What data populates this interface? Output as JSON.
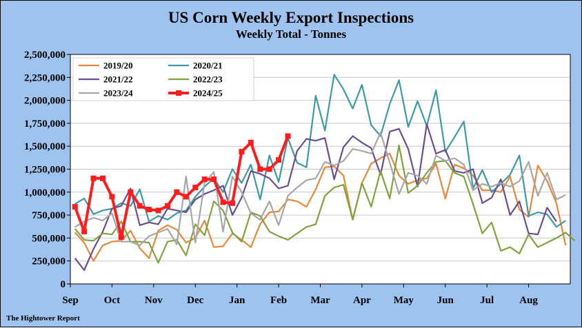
{
  "colors": {
    "background": "#9dc3ee",
    "plot_area": "#ffffff",
    "grid": "#c8c8c8"
  },
  "chart_data": {
    "type": "line",
    "title": "US Corn Weekly Export Inspections",
    "subtitle": "Weekly Total - Tonnes",
    "source": "The Hightower Report",
    "x_tick_labels": [
      "Sep",
      "Oct",
      "Nov",
      "Dec",
      "Jan",
      "Feb",
      "Mar",
      "Apr",
      "May",
      "Jun",
      "Jul",
      "Aug"
    ],
    "y_tick_labels": [
      "0",
      "250,000",
      "500,000",
      "750,000",
      "1,000,000",
      "1,250,000",
      "1,500,000",
      "1,750,000",
      "2,000,000",
      "2,250,000",
      "2,500,000"
    ],
    "ylim": [
      0,
      2500000
    ],
    "grid": true,
    "legend_position": "top-left",
    "series": [
      {
        "name": "2019/20",
        "color": "#e8873a",
        "width": 2.2,
        "marker": false,
        "values": [
          560000,
          450000,
          250000,
          420000,
          460000,
          470000,
          580000,
          390000,
          280000,
          580000,
          640000,
          590000,
          450000,
          500000,
          690000,
          400000,
          410000,
          550000,
          480000,
          400000,
          650000,
          780000,
          790000,
          920000,
          900000,
          840000,
          1030000,
          1270000,
          1280000,
          1180000,
          700000,
          1100000,
          1310000,
          1370000,
          1420000,
          1180000,
          1090000,
          1130000,
          1150000,
          1310000,
          930000,
          1300000,
          1260000,
          1180000,
          1020000,
          1020000,
          1000000,
          1170000,
          810000,
          730000,
          1290000,
          1120000,
          880000,
          420000
        ]
      },
      {
        "name": "2020/21",
        "color": "#3b9aa8",
        "width": 2.2,
        "marker": false,
        "values": [
          870000,
          930000,
          760000,
          800000,
          820000,
          880000,
          850000,
          1030000,
          680000,
          740000,
          700000,
          770000,
          800000,
          950000,
          1060000,
          1150000,
          1000000,
          1250000,
          1100000,
          1300000,
          920000,
          1400000,
          1110000,
          1590000,
          1320000,
          1270000,
          2050000,
          1670000,
          2280000,
          2120000,
          1910000,
          2170000,
          1730000,
          1610000,
          1960000,
          2220000,
          1710000,
          1990000,
          1720000,
          2110000,
          1440000,
          1600000,
          1770000,
          1040000,
          1240000,
          1000000,
          1090000,
          1190000,
          1400000,
          740000,
          780000,
          760000,
          620000,
          690000
        ]
      },
      {
        "name": "2021/22",
        "color": "#6a4c93",
        "width": 2.2,
        "marker": false,
        "values": [
          280000,
          150000,
          380000,
          570000,
          820000,
          850000,
          1040000,
          640000,
          670000,
          650000,
          820000,
          800000,
          780000,
          920000,
          980000,
          1020000,
          1070000,
          750000,
          940000,
          1230000,
          1200000,
          1150000,
          1040000,
          1070000,
          1450000,
          1580000,
          1560000,
          1590000,
          1140000,
          1490000,
          1610000,
          1540000,
          1480000,
          1190000,
          1660000,
          1690000,
          1470000,
          1060000,
          1740000,
          1420000,
          1460000,
          1230000,
          1210000,
          1250000,
          880000,
          940000,
          1140000,
          750000,
          900000,
          550000,
          540000,
          830000,
          680000
        ]
      },
      {
        "name": "2022/23",
        "color": "#7fa23c",
        "width": 2.2,
        "marker": false,
        "values": [
          600000,
          480000,
          470000,
          550000,
          540000,
          680000,
          460000,
          460000,
          450000,
          230000,
          460000,
          480000,
          310000,
          650000,
          530000,
          900000,
          800000,
          560000,
          460000,
          780000,
          740000,
          570000,
          520000,
          480000,
          550000,
          620000,
          650000,
          960000,
          1050000,
          1080000,
          700000,
          1100000,
          840000,
          1230000,
          930000,
          1510000,
          990000,
          1070000,
          1210000,
          1330000,
          1340000,
          1210000,
          1170000,
          870000,
          550000,
          670000,
          360000,
          400000,
          330000,
          540000,
          400000,
          450000,
          500000,
          560000,
          470000
        ]
      },
      {
        "name": "2023/24",
        "color": "#a6a6a6",
        "width": 2.2,
        "marker": false,
        "values": [
          620000,
          680000,
          720000,
          690000,
          770000,
          460000,
          460000,
          420000,
          520000,
          560000,
          600000,
          430000,
          1170000,
          450000,
          1100000,
          1220000,
          570000,
          1170000,
          1000000,
          770000,
          700000,
          900000,
          640000,
          960000,
          1050000,
          1130000,
          1150000,
          1330000,
          1290000,
          1340000,
          1470000,
          1450000,
          1420000,
          1650000,
          1320000,
          980000,
          1210000,
          1180000,
          1090000,
          1400000,
          1340000,
          1370000,
          1300000,
          1020000,
          1090000,
          1060000,
          1100000,
          1060000,
          1120000,
          1330000,
          960000,
          1210000,
          920000,
          970000
        ]
      },
      {
        "name": "2024/25",
        "color": "#ff1c1c",
        "width": 4,
        "marker": true,
        "values": [
          840000,
          570000,
          1150000,
          1150000,
          950000,
          510000,
          1000000,
          850000,
          810000,
          800000,
          850000,
          1000000,
          950000,
          1050000,
          1140000,
          1140000,
          890000,
          880000,
          1440000,
          1540000,
          1250000,
          1250000,
          1350000,
          1610000
        ]
      }
    ]
  }
}
